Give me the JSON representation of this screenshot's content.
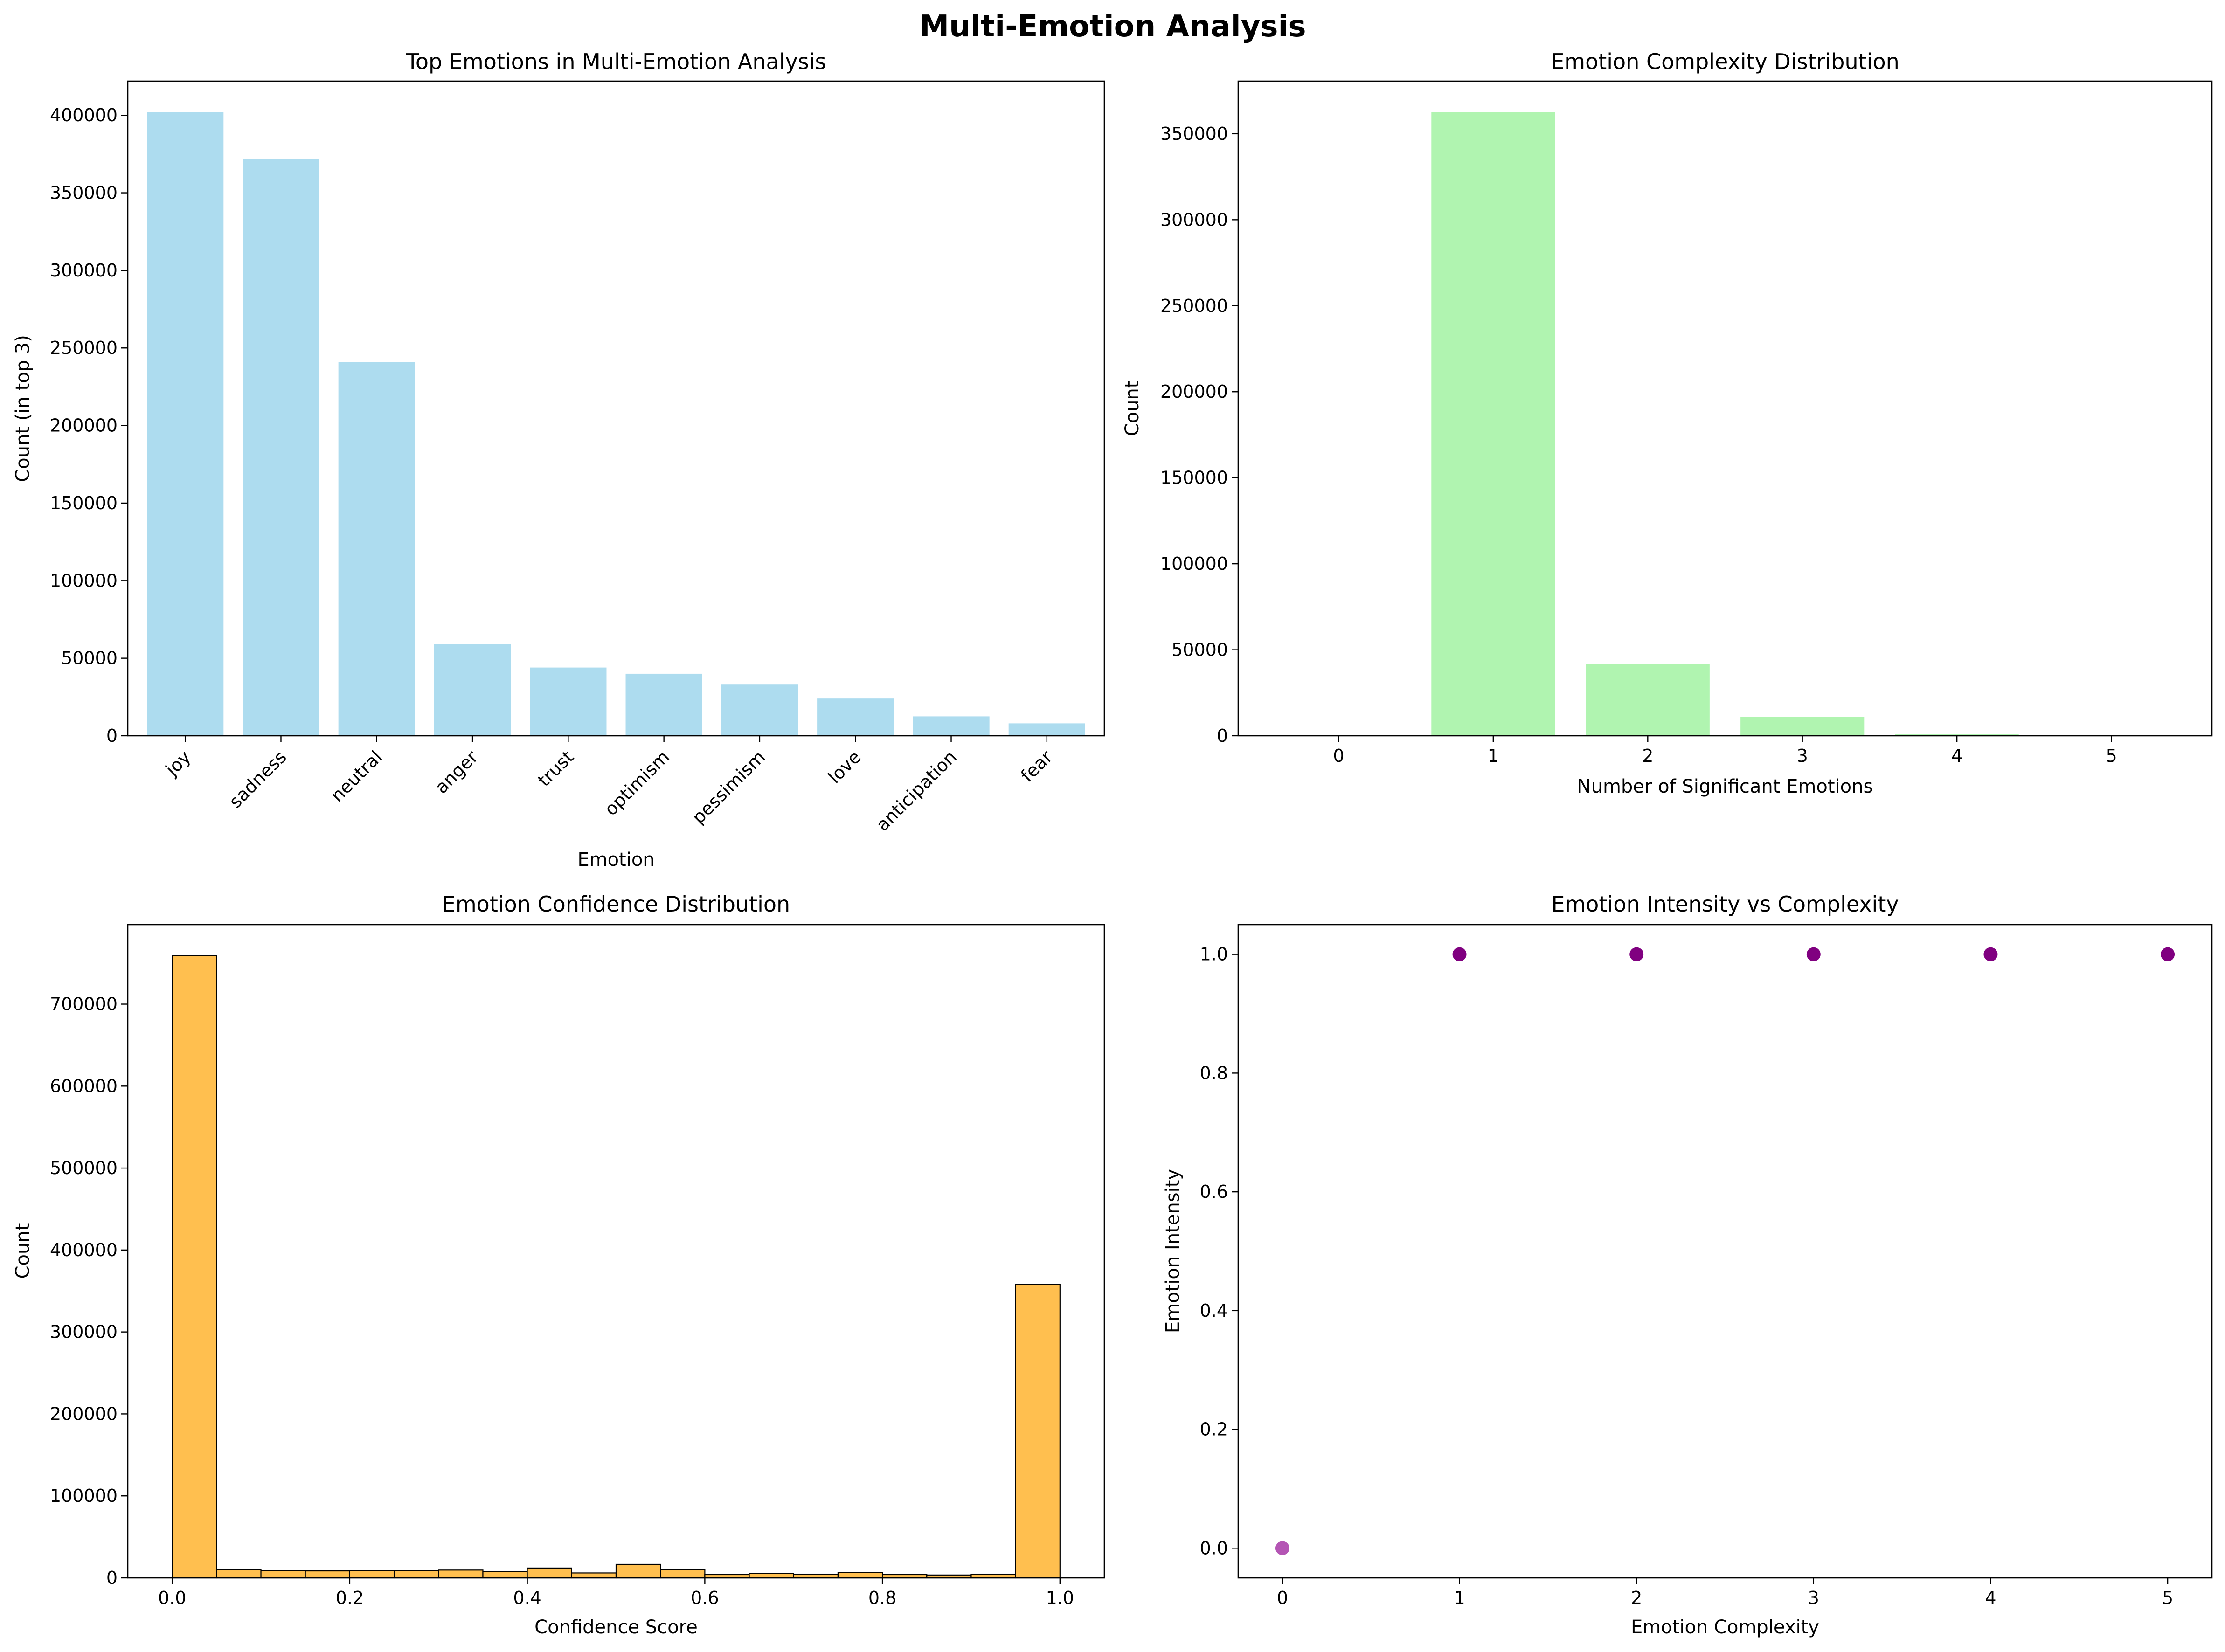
{
  "figure": {
    "title": "Multi-Emotion Analysis"
  },
  "chart_data": [
    {
      "id": "top-emotions",
      "type": "bar",
      "title": "Top Emotions in Multi-Emotion Analysis",
      "xlabel": "Emotion",
      "ylabel": "Count (in top 3)",
      "categories": [
        "joy",
        "sadness",
        "neutral",
        "anger",
        "trust",
        "optimism",
        "pessimism",
        "love",
        "anticipation",
        "fear"
      ],
      "values": [
        402000,
        372000,
        241000,
        59000,
        44000,
        40000,
        33000,
        24000,
        12500,
        8000
      ],
      "ylim": [
        0,
        422000
      ],
      "yticks": [
        0,
        50000,
        100000,
        150000,
        200000,
        250000,
        300000,
        350000,
        400000
      ],
      "xtick_rotation": 45,
      "color": "#ADDCEF",
      "grid": false
    },
    {
      "id": "complexity",
      "type": "bar",
      "title": "Emotion Complexity Distribution",
      "xlabel": "Number of Significant Emotions",
      "ylabel": "Count",
      "categories": [
        0,
        1,
        2,
        3,
        4,
        5
      ],
      "values": [
        300,
        362500,
        42000,
        11000,
        1000,
        150
      ],
      "xlim": [
        -0.65,
        5.65
      ],
      "ylim": [
        0,
        380600
      ],
      "yticks": [
        0,
        50000,
        100000,
        150000,
        200000,
        250000,
        300000,
        350000
      ],
      "color": "#B0F4B0",
      "grid": false
    },
    {
      "id": "confidence",
      "type": "bar",
      "title": "Emotion Confidence Distribution",
      "xlabel": "Confidence Score",
      "ylabel": "Count",
      "bins": 20,
      "range": [
        0,
        1
      ],
      "values": [
        759000,
        10000,
        9000,
        8500,
        9000,
        9000,
        9500,
        7500,
        12000,
        6000,
        16500,
        10000,
        4000,
        5500,
        4500,
        6500,
        4000,
        3500,
        4500,
        358000
      ],
      "xlim": [
        -0.05,
        1.05
      ],
      "ylim": [
        0,
        797000
      ],
      "xticks": [
        0.0,
        0.2,
        0.4,
        0.6,
        0.8,
        1.0
      ],
      "yticks": [
        0,
        100000,
        200000,
        300000,
        400000,
        500000,
        600000,
        700000
      ],
      "color": "#FFBF4F",
      "edgecolor": "#000000",
      "grid": false
    },
    {
      "id": "intensity",
      "type": "scatter",
      "title": "Emotion Intensity vs Complexity",
      "xlabel": "Emotion Complexity",
      "ylabel": "Emotion Intensity",
      "x": [
        0,
        1,
        2,
        3,
        4,
        5
      ],
      "y": [
        0.0,
        1.0,
        1.0,
        1.0,
        1.0,
        1.0
      ],
      "point_colors": [
        "#B455B4",
        "#800080",
        "#800080",
        "#800080",
        "#800080",
        "#800080"
      ],
      "xlim": [
        -0.25,
        5.25
      ],
      "ylim": [
        -0.05,
        1.05
      ],
      "xticks": [
        0,
        1,
        2,
        3,
        4,
        5
      ],
      "yticks": [
        0.0,
        0.2,
        0.4,
        0.6,
        0.8,
        1.0
      ],
      "grid": false
    }
  ]
}
